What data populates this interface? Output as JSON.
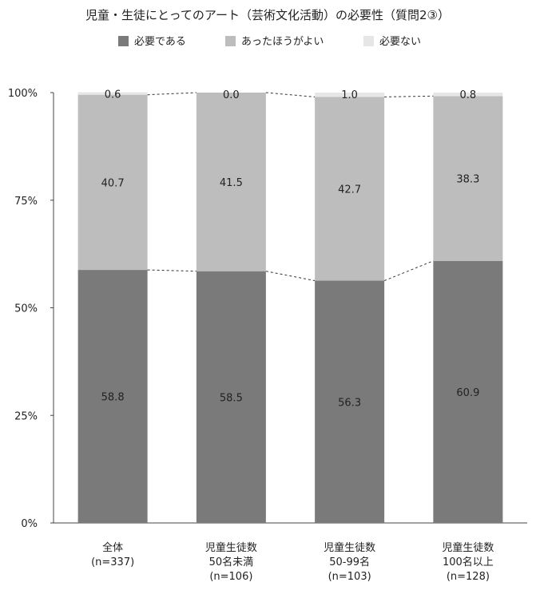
{
  "chart_data": {
    "type": "bar",
    "stacked": true,
    "percent": true,
    "title": "児童・生徒にとってのアート（芸術文化活動）の必要性（質問2③）",
    "categories": [
      [
        "全体",
        "(n=337)"
      ],
      [
        "児童生徒数",
        "50名未満",
        "(n=106)"
      ],
      [
        "児童生徒数",
        "50-99名",
        "(n=103)"
      ],
      [
        "児童生徒数",
        "100名以上",
        "(n=128)"
      ]
    ],
    "series": [
      {
        "name": "必要である",
        "values": [
          58.8,
          58.5,
          56.3,
          60.9
        ],
        "color": "#7a7a7a"
      },
      {
        "name": "あったほうがよい",
        "values": [
          40.7,
          41.5,
          42.7,
          38.3
        ],
        "color": "#bdbdbd"
      },
      {
        "name": "必要ない",
        "values": [
          0.6,
          0.0,
          1.0,
          0.8
        ],
        "color": "#e6e6e6"
      }
    ],
    "value_labels": [
      [
        "58.8",
        "58.5",
        "56.3",
        "60.9"
      ],
      [
        "40.7",
        "41.5",
        "42.7",
        "38.3"
      ],
      [
        "0.6",
        "0.0",
        "1.0",
        "0.8"
      ]
    ],
    "ylim": [
      0,
      100
    ],
    "yticks": [
      0,
      25,
      50,
      75,
      100
    ],
    "ytick_labels": [
      "0%",
      "25%",
      "50%",
      "75%",
      "100%"
    ],
    "series_connector_lines": true,
    "legend_position": "top",
    "grid": false
  }
}
